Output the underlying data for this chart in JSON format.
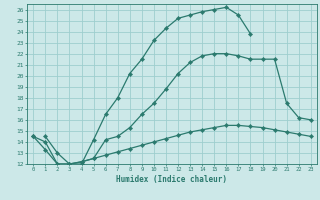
{
  "xlabel": "Humidex (Indice chaleur)",
  "background_color": "#cce8e8",
  "grid_color": "#9ecece",
  "line_color": "#2b7a6e",
  "xlim": [
    -0.5,
    23.5
  ],
  "ylim": [
    12,
    26.5
  ],
  "yticks": [
    12,
    13,
    14,
    15,
    16,
    17,
    18,
    19,
    20,
    21,
    22,
    23,
    24,
    25,
    26
  ],
  "xticks": [
    0,
    1,
    2,
    3,
    4,
    5,
    6,
    7,
    8,
    9,
    10,
    11,
    12,
    13,
    14,
    15,
    16,
    17,
    18,
    19,
    20,
    21,
    22,
    23
  ],
  "curve1_x": [
    1,
    2,
    3,
    4,
    5,
    6,
    7,
    8,
    9,
    10,
    11,
    12,
    13,
    14,
    15,
    16,
    17,
    18
  ],
  "curve1_y": [
    14.5,
    13.0,
    12.0,
    12.0,
    14.2,
    16.5,
    18.0,
    20.2,
    21.5,
    23.2,
    24.3,
    25.2,
    25.5,
    25.8,
    26.0,
    26.2,
    25.5,
    23.8
  ],
  "curve2_x": [
    0,
    1,
    2,
    3,
    4,
    5,
    6,
    7,
    8,
    9,
    10,
    11,
    12,
    13,
    14,
    15,
    16,
    17,
    18,
    19,
    20,
    21,
    22,
    23
  ],
  "curve2_y": [
    14.5,
    14.0,
    12.0,
    12.0,
    12.2,
    12.5,
    14.2,
    14.5,
    15.3,
    16.5,
    17.5,
    18.8,
    20.2,
    21.2,
    21.8,
    22.0,
    22.0,
    21.8,
    21.5,
    21.5,
    21.5,
    17.5,
    16.2,
    16.0
  ],
  "curve3_x": [
    0,
    1,
    2,
    3,
    4,
    5,
    6,
    7,
    8,
    9,
    10,
    11,
    12,
    13,
    14,
    15,
    16,
    17,
    18,
    19,
    20,
    21,
    22,
    23
  ],
  "curve3_y": [
    14.5,
    13.3,
    12.0,
    12.0,
    12.2,
    12.5,
    12.8,
    13.1,
    13.4,
    13.7,
    14.0,
    14.3,
    14.6,
    14.9,
    15.1,
    15.3,
    15.5,
    15.5,
    15.4,
    15.3,
    15.1,
    14.9,
    14.7,
    14.5
  ]
}
